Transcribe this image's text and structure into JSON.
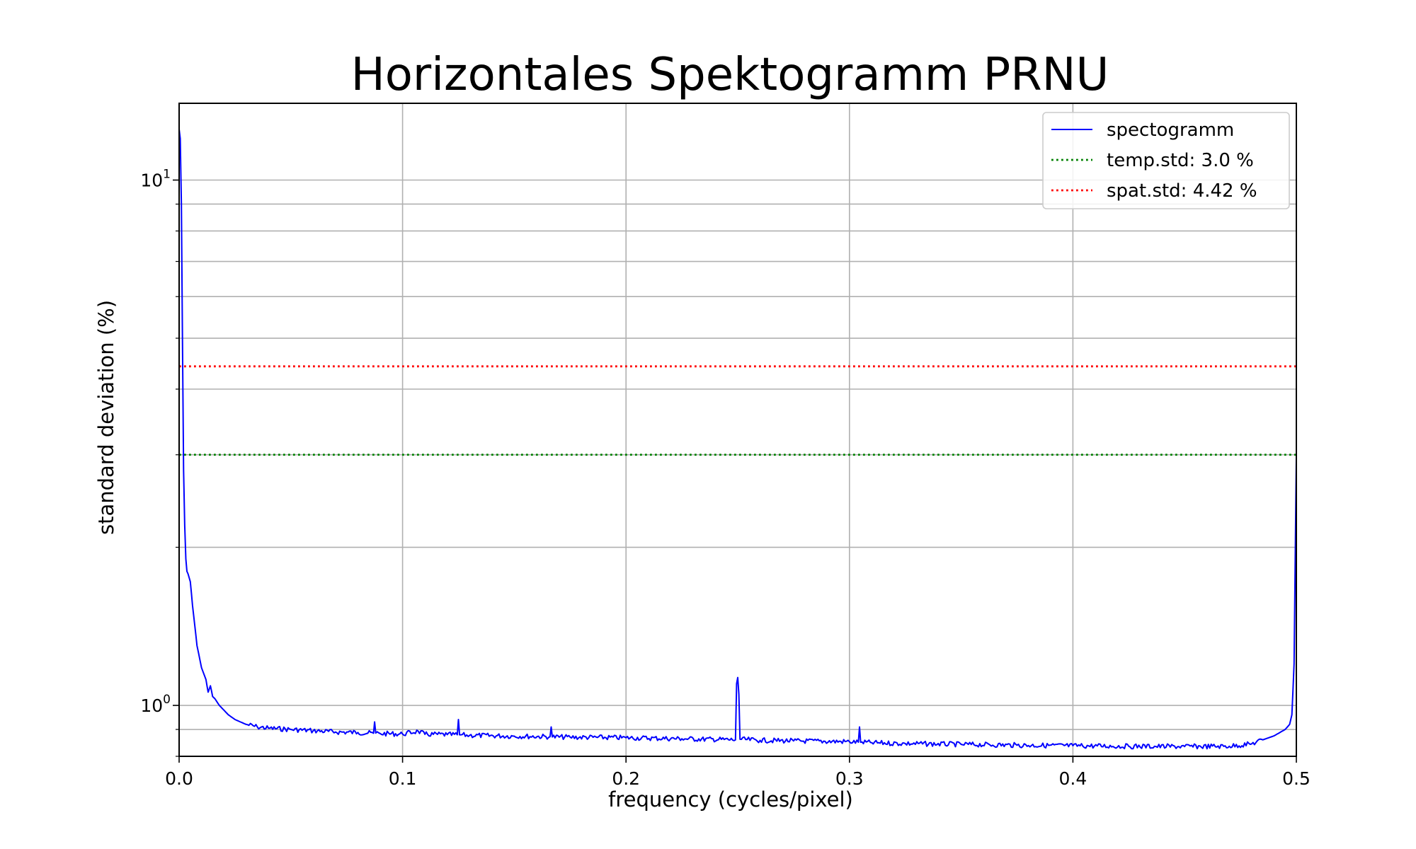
{
  "chart_data": {
    "type": "line",
    "title": "Horizontales Spektogramm PRNU",
    "xlabel": "frequency (cycles/pixel)",
    "ylabel": "standard deviation (%)",
    "xlim": [
      0.0,
      0.5
    ],
    "ylim": [
      0.8,
      14.0
    ],
    "yscale": "log",
    "grid": true,
    "legend_position": "top-right",
    "x_ticks": [
      {
        "value": 0.0,
        "label": "0.0"
      },
      {
        "value": 0.1,
        "label": "0.1"
      },
      {
        "value": 0.2,
        "label": "0.2"
      },
      {
        "value": 0.3,
        "label": "0.3"
      },
      {
        "value": 0.4,
        "label": "0.4"
      },
      {
        "value": 0.5,
        "label": "0.5"
      }
    ],
    "y_ticks": [
      {
        "value": 1,
        "base": "10",
        "exp": "0"
      },
      {
        "value": 10,
        "base": "10",
        "exp": "1"
      }
    ],
    "y_minor_ticks": [
      0.8,
      0.9,
      2,
      3,
      4,
      5,
      6,
      7,
      8,
      9
    ],
    "series": [
      {
        "name": "spectogramm",
        "color": "#0000ff",
        "style": "solid",
        "x": [
          0.0,
          0.0005,
          0.001,
          0.0015,
          0.002,
          0.0025,
          0.003,
          0.0035,
          0.004,
          0.005,
          0.006,
          0.007,
          0.008,
          0.01,
          0.012,
          0.013,
          0.014,
          0.015,
          0.016,
          0.018,
          0.02,
          0.022,
          0.025,
          0.03,
          0.035,
          0.04,
          0.05,
          0.06,
          0.07,
          0.08,
          0.087,
          0.0875,
          0.088,
          0.09,
          0.1,
          0.107,
          0.11,
          0.12,
          0.1245,
          0.125,
          0.1255,
          0.13,
          0.15,
          0.166,
          0.1665,
          0.167,
          0.175,
          0.2,
          0.225,
          0.249,
          0.2495,
          0.25,
          0.2505,
          0.251,
          0.26,
          0.275,
          0.3,
          0.304,
          0.3045,
          0.305,
          0.31,
          0.325,
          0.35,
          0.375,
          0.4,
          0.425,
          0.45,
          0.47,
          0.48,
          0.485,
          0.49,
          0.495,
          0.497,
          0.498,
          0.499,
          0.4995,
          0.5
        ],
        "values": [
          12.5,
          12.0,
          9.0,
          5.0,
          2.8,
          2.2,
          1.9,
          1.8,
          1.78,
          1.72,
          1.55,
          1.42,
          1.3,
          1.18,
          1.12,
          1.06,
          1.09,
          1.04,
          1.03,
          1.0,
          0.98,
          0.96,
          0.94,
          0.92,
          0.91,
          0.905,
          0.9,
          0.895,
          0.89,
          0.888,
          0.885,
          0.93,
          0.886,
          0.884,
          0.882,
          0.893,
          0.881,
          0.88,
          0.879,
          0.94,
          0.879,
          0.877,
          0.874,
          0.872,
          0.91,
          0.871,
          0.87,
          0.868,
          0.864,
          0.86,
          1.1,
          1.13,
          1.05,
          0.862,
          0.858,
          0.856,
          0.853,
          0.851,
          0.91,
          0.851,
          0.849,
          0.846,
          0.843,
          0.84,
          0.838,
          0.836,
          0.835,
          0.836,
          0.845,
          0.86,
          0.875,
          0.9,
          0.92,
          0.96,
          1.2,
          1.9,
          3.0
        ]
      },
      {
        "name": "temp.std: 3.0 %",
        "color": "#008000",
        "style": "dotted",
        "constant": 3.0
      },
      {
        "name": "spat.std: 4.42 %",
        "color": "#ff0000",
        "style": "dotted",
        "constant": 4.42
      }
    ]
  }
}
